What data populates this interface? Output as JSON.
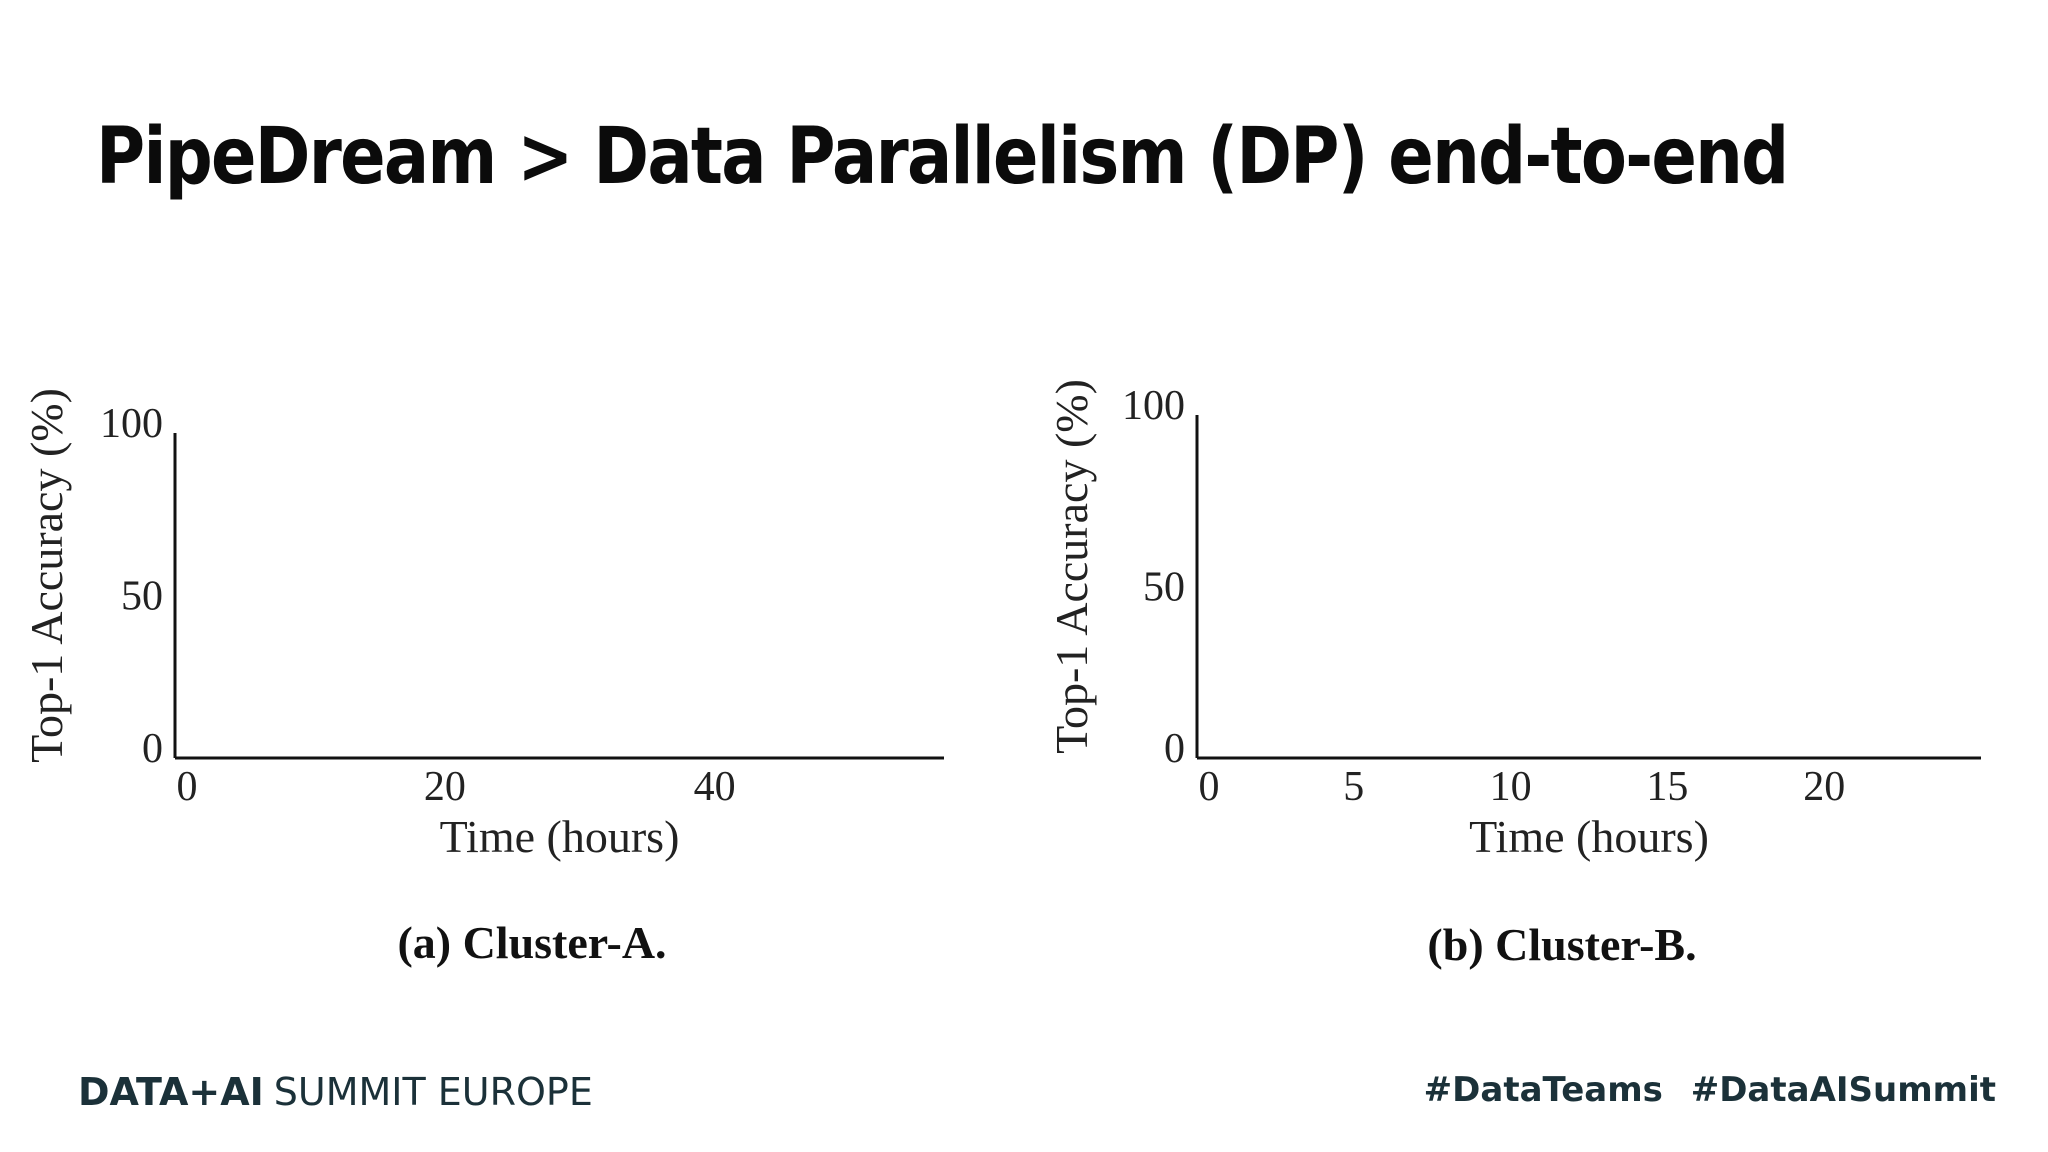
{
  "slide": {
    "title": "PipeDream > Data Parallelism (DP) end-to-end"
  },
  "chart_data": [
    {
      "type": "line",
      "caption": "(a) Cluster-A.",
      "xlabel": "Time (hours)",
      "ylabel": "Top-1 Accuracy (%)",
      "xlim": [
        0,
        57
      ],
      "ylim": [
        0,
        100
      ],
      "xticks": [
        0,
        20,
        40
      ],
      "yticks": [
        0,
        50,
        100
      ],
      "grid": false,
      "series": []
    },
    {
      "type": "line",
      "caption": "(b) Cluster-B.",
      "xlabel": "Time (hours)",
      "ylabel": "Top-1 Accuracy (%)",
      "xlim": [
        0,
        25
      ],
      "ylim": [
        0,
        100
      ],
      "xticks": [
        0,
        5,
        10,
        15,
        20
      ],
      "yticks": [
        0,
        50,
        100
      ],
      "grid": false,
      "series": []
    }
  ],
  "footer": {
    "brand": "DATA+AI",
    "event": "SUMMIT EUROPE",
    "hashtags": [
      "#DataTeams",
      "#DataAISummit"
    ]
  }
}
